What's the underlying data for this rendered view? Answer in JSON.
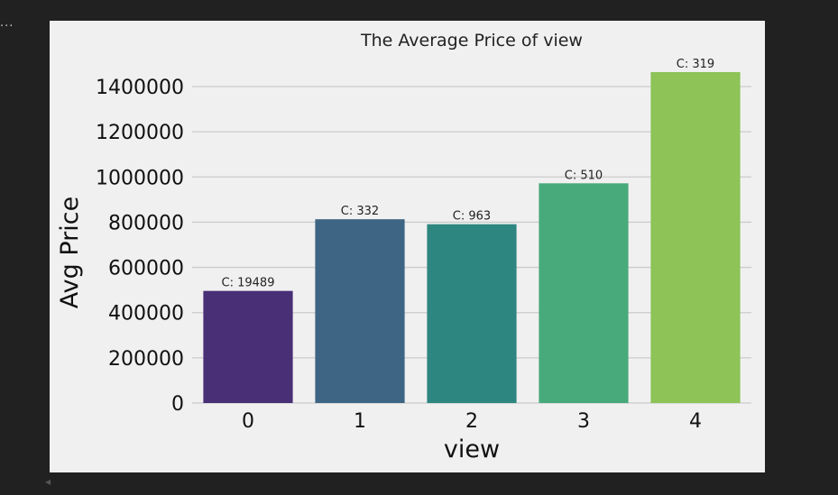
{
  "cell": {
    "overflow_marker": "..."
  },
  "chart_data": {
    "type": "bar",
    "title": "The Average Price of view",
    "xlabel": "view",
    "ylabel": "Avg Price",
    "categories": [
      "0",
      "1",
      "2",
      "3",
      "4"
    ],
    "values": [
      496000,
      813000,
      791000,
      972000,
      1464000
    ],
    "annotations": [
      "C: 19489",
      "C: 332",
      "C: 963",
      "C: 510",
      "C: 319"
    ],
    "colors": [
      "#482f76",
      "#3e6583",
      "#2d8680",
      "#48aa7a",
      "#8dc357"
    ],
    "ylim": [
      0,
      1400000
    ],
    "yticks": [
      "0",
      "200000",
      "400000",
      "600000",
      "800000",
      "1000000",
      "1200000",
      "1400000"
    ],
    "grid": "horizontal",
    "background": "#f0f0f0",
    "legend": "none"
  }
}
